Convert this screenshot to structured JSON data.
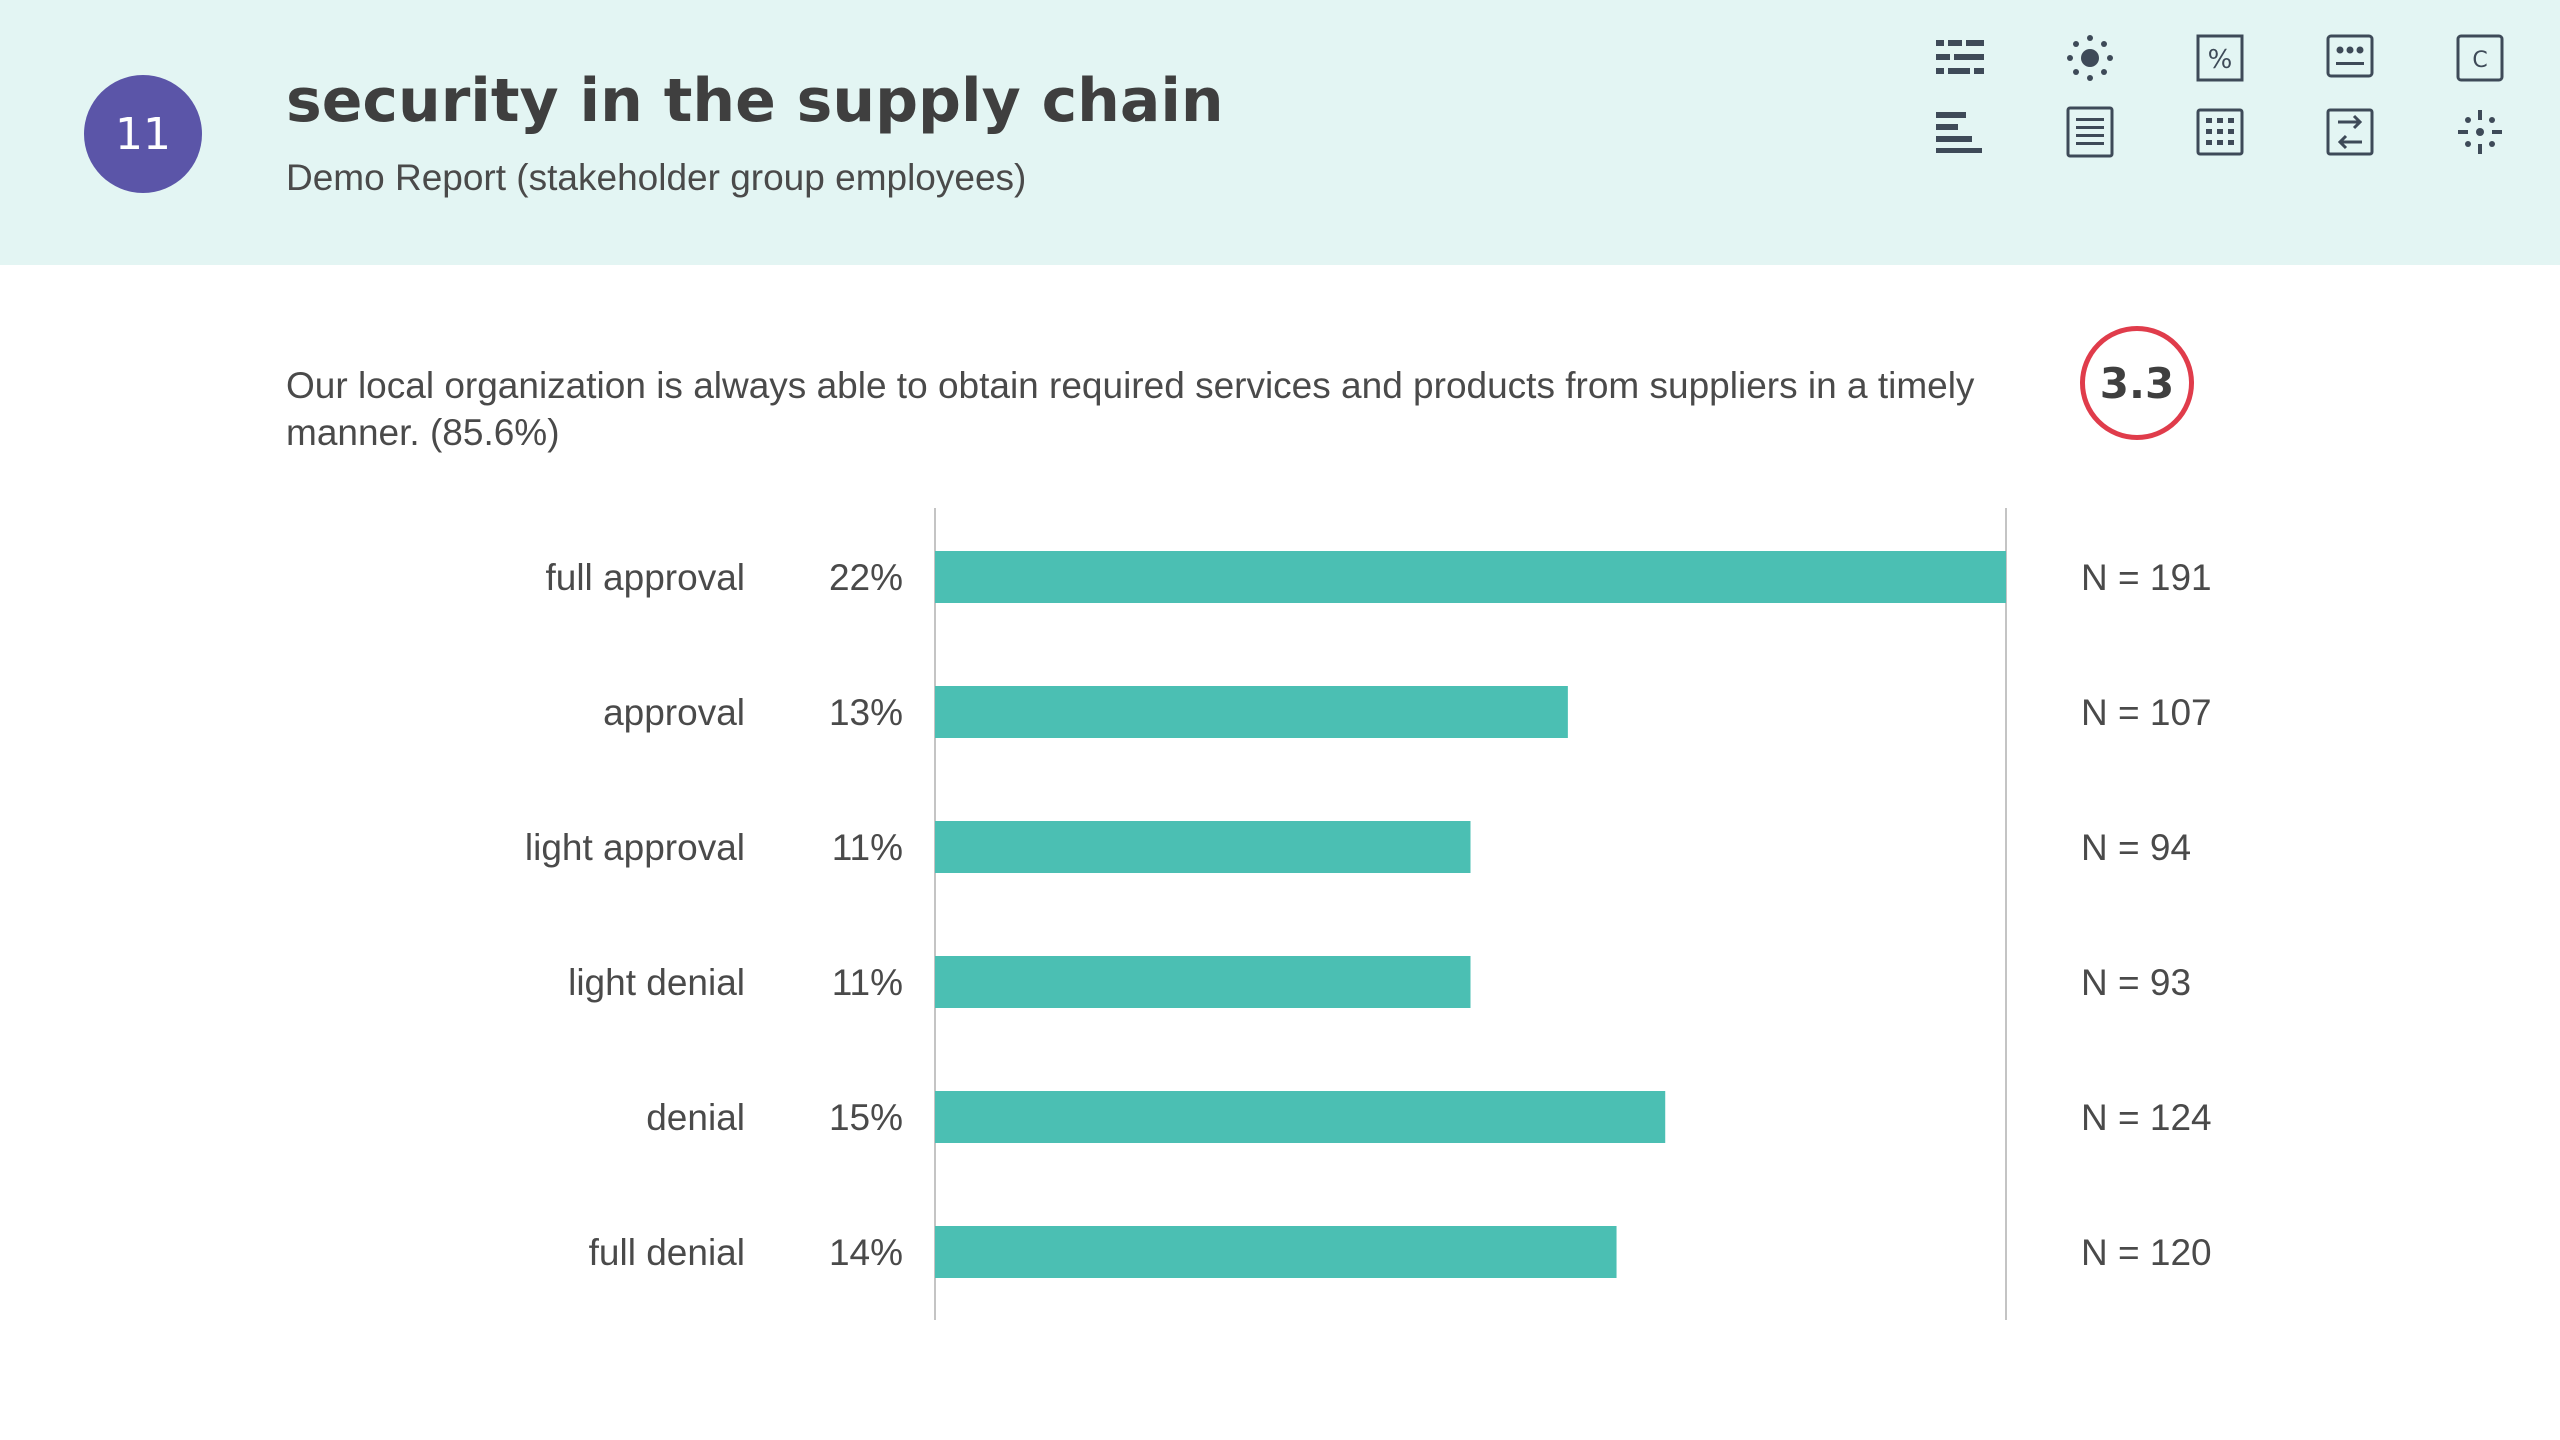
{
  "header": {
    "section_number": "11",
    "title": "security in the supply chain",
    "subtitle": "Demo Report (stakeholder group employees)"
  },
  "toolbar": {
    "icons": [
      "list-icon",
      "sun-icon",
      "percent-icon",
      "dashboard-icon",
      "c-box-icon",
      "bar-sort-icon",
      "document-icon",
      "grid-table-icon",
      "swap-icon",
      "sparkle-icon"
    ],
    "percent_label": "%",
    "c_label": "C"
  },
  "question": {
    "text": "Our local organization is always able to obtain required services and products from suppliers in a timely manner. (85.6%)",
    "score": "3.3",
    "score_color": "#e03c4b"
  },
  "colors": {
    "bar": "#4bbfb3",
    "header_bg": "#e3f5f3",
    "badge": "#5b55a8"
  },
  "chart_data": {
    "type": "bar",
    "orientation": "horizontal",
    "categories": [
      "full approval",
      "approval",
      "light approval",
      "light denial",
      "denial",
      "full denial"
    ],
    "values": [
      22,
      13,
      11,
      11,
      15,
      14
    ],
    "value_labels": [
      "22%",
      "13%",
      "11%",
      "11%",
      "15%",
      "14%"
    ],
    "counts": [
      "N = 191",
      "N = 107",
      "N = 94",
      "N = 93",
      "N = 124",
      "N = 120"
    ],
    "n_values": [
      191,
      107,
      94,
      93,
      124,
      120
    ],
    "title": "",
    "xlabel": "",
    "ylabel": ""
  }
}
